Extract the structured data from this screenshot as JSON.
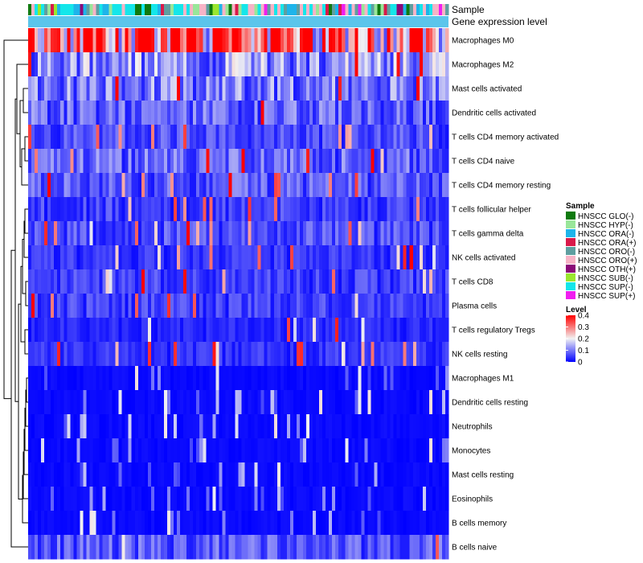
{
  "chart_data": {
    "type": "heatmap",
    "title": "",
    "annotation_tracks": [
      "Sample",
      "Gene expression level"
    ],
    "rows": [
      "Macrophages M0",
      "Macrophages M2",
      "Mast cells activated",
      "Dendritic cells activated",
      "T cells CD4 memory activated",
      "T cells CD4 naive",
      "T cells CD4 memory resting",
      "T cells follicular helper",
      "T cells gamma delta",
      "NK cells activated",
      "T cells CD8",
      "Plasma cells",
      "T cells regulatory  Tregs",
      "NK cells resting",
      "Macrophages M1",
      "Dendritic cells resting",
      "Neutrophils",
      "Monocytes",
      "Mast cells resting",
      "Eosinophils",
      "B cells memory",
      "B cells naive"
    ],
    "row_mean_levels": [
      0.32,
      0.12,
      0.1,
      0.08,
      0.06,
      0.08,
      0.07,
      0.05,
      0.06,
      0.04,
      0.05,
      0.05,
      0.03,
      0.04,
      0.01,
      0.01,
      0.01,
      0.01,
      0.01,
      0.01,
      0.01,
      0.07
    ],
    "n_samples": 130,
    "color_scale": {
      "title": "Level",
      "range": [
        0,
        0.4
      ],
      "ticks": [
        "0.4",
        "0.3",
        "0.2",
        "0.1",
        "0"
      ],
      "colors": [
        "#0000ff",
        "#f2f2f2",
        "#ff0000"
      ]
    },
    "gene_expression_color": "#5bc5eb",
    "legend": {
      "title": "Sample",
      "entries": [
        {
          "label": "HNSCC GLO(-)",
          "color": "#0f7a0f"
        },
        {
          "label": "HNSCC HYP(-)",
          "color": "#99e699"
        },
        {
          "label": "HNSCC ORA(-)",
          "color": "#1eb4ea"
        },
        {
          "label": "HNSCC ORA(+)",
          "color": "#d9194a"
        },
        {
          "label": "HNSCC ORO(-)",
          "color": "#5f9ea0"
        },
        {
          "label": "HNSCC ORO(+)",
          "color": "#f7b3c6"
        },
        {
          "label": "HNSCC OTH(+)",
          "color": "#8b0a78"
        },
        {
          "label": "HNSCC SUB(-)",
          "color": "#9ae62e"
        },
        {
          "label": "HNSCC SUP(-)",
          "color": "#14e6ea"
        },
        {
          "label": "HNSCC SUP(+)",
          "color": "#f01ef0"
        }
      ]
    }
  }
}
